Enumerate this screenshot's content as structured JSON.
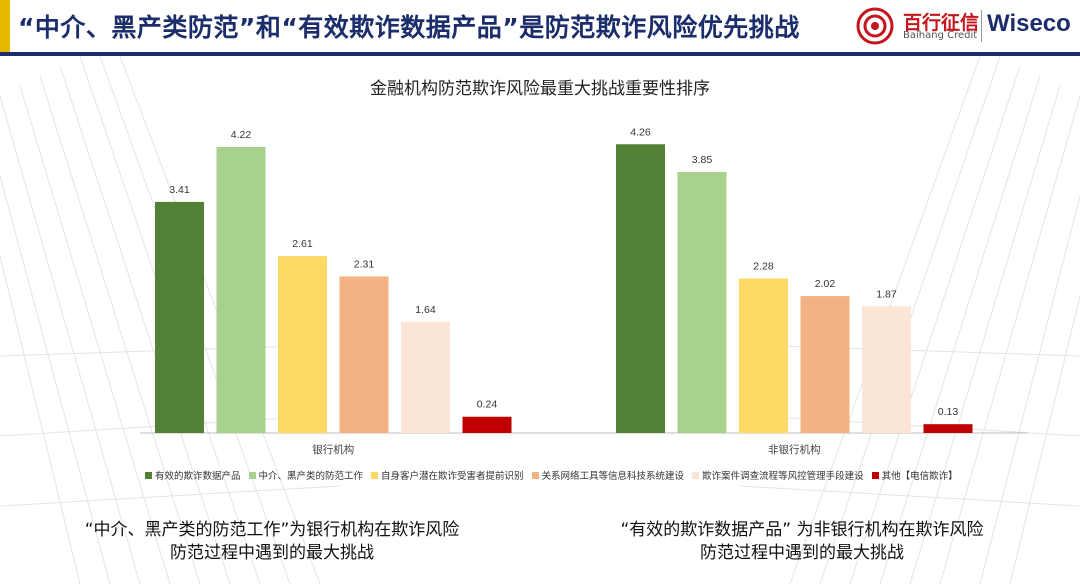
{
  "header": {
    "title": "“中介、黑产类防范”和“有效欺诈数据产品”是防范欺诈风险优先挑战",
    "brand_cn": "百行征信",
    "brand_en": "Baihang Credit",
    "brand_wiseco": "Wiseco"
  },
  "chart_data": {
    "type": "bar",
    "title": "金融机构防范欺诈风险最重大挑战重要性排序",
    "categories": [
      "银行机构",
      "非银行机构"
    ],
    "series": [
      {
        "name": "有效的欺诈数据产品",
        "color": "#538135",
        "values": [
          3.41,
          4.26
        ]
      },
      {
        "name": "中介、黑产类的防范工作",
        "color": "#a9d18e",
        "values": [
          4.22,
          3.85
        ]
      },
      {
        "name": "自身客户潜在欺诈受害者提前识别",
        "color": "#ffd966",
        "values": [
          2.61,
          2.28
        ]
      },
      {
        "name": "关系网络工具等信息科技系统建设",
        "color": "#f4b183",
        "values": [
          2.31,
          2.02
        ]
      },
      {
        "name": "欺诈案件调查流程等风控管理手段建设",
        "color": "#fbe5d6",
        "values": [
          1.64,
          1.87
        ]
      },
      {
        "name": "其他【电信欺诈】",
        "color": "#c00000",
        "values": [
          0.24,
          0.13
        ]
      }
    ],
    "value_labels": [
      [
        "3.41",
        "4.22",
        "2.61",
        "2.31",
        "1.64",
        "0.24"
      ],
      [
        "4.26",
        "3.85",
        "2.28",
        "2.02",
        "1.87",
        "0.13"
      ]
    ],
    "ylim": [
      0,
      4.5
    ],
    "grid": false,
    "legend_position": "bottom"
  },
  "captions": {
    "left_line1": "“中介、黑产类的防范工作”为银行机构在欺诈风险",
    "left_line2": "防范过程中遇到的最大挑战",
    "right_line1": "“有效的欺诈数据产品” 为非银行机构在欺诈风险",
    "right_line2": "防范过程中遇到的最大挑战"
  }
}
